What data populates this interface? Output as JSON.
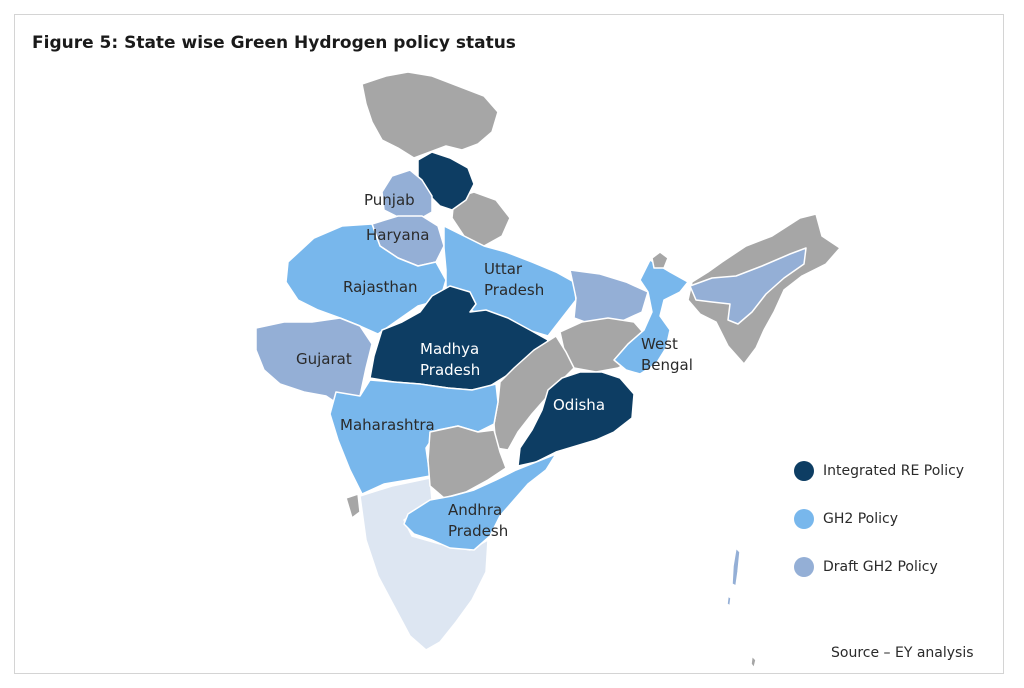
{
  "title": "Figure 5:  State wise Green Hydrogen policy status",
  "source": "Source – EY analysis",
  "colors": {
    "integrated": "#0d3d63",
    "gh2": "#78b7ec",
    "draft": "#94afd6",
    "none": "#a6a6a6",
    "south": "#dde6f2",
    "border": "#ffffff"
  },
  "legend": [
    {
      "label": "Integrated RE Policy",
      "color": "#0d3d63"
    },
    {
      "label": "GH2 Policy",
      "color": "#78b7ec"
    },
    {
      "label": "Draft GH2 Policy",
      "color": "#94afd6"
    }
  ],
  "states": {
    "punjab": {
      "label": "Punjab",
      "status": "draft"
    },
    "haryana": {
      "label": "Haryana",
      "status": "draft"
    },
    "rajasthan": {
      "label": "Rajasthan",
      "status": "gh2"
    },
    "uttar_pradesh": {
      "label": [
        "Uttar",
        "Pradesh"
      ],
      "status": "gh2"
    },
    "gujarat": {
      "label": "Gujarat",
      "status": "draft"
    },
    "madhya_pradesh": {
      "label": [
        "Madhya",
        "Pradesh"
      ],
      "status": "integrated"
    },
    "west_bengal": {
      "label": [
        "West",
        "Bengal"
      ],
      "status": "gh2"
    },
    "odisha": {
      "label": "Odisha",
      "status": "integrated"
    },
    "maharashtra": {
      "label": "Maharashtra",
      "status": "gh2"
    },
    "andhra_pradesh": {
      "label": [
        "Andhra",
        "Pradesh"
      ],
      "status": "gh2"
    },
    "himachal_pradesh": {
      "label": "",
      "status": "integrated"
    }
  }
}
